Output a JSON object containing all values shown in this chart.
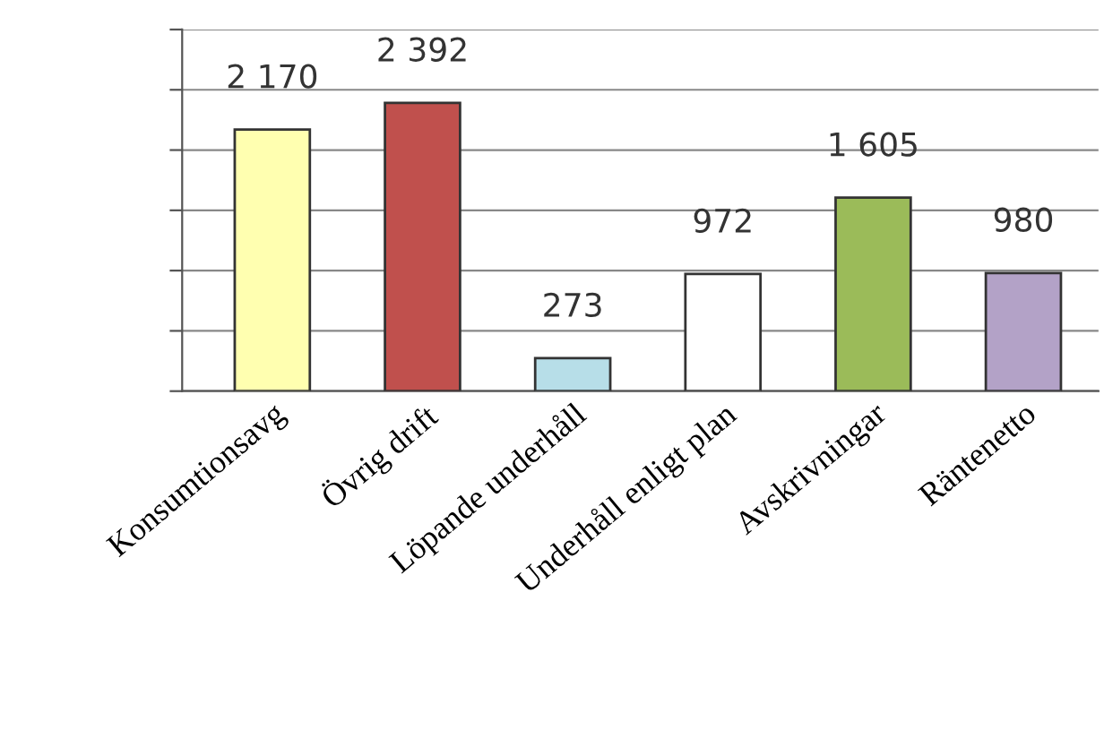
{
  "chart_data": {
    "type": "bar",
    "categories": [
      "Konsumtionsavg",
      "Övrig drift",
      "Löpande underhåll",
      "Underhåll enligt plan",
      "Avskrivningar",
      "Räntenetto"
    ],
    "values": [
      2170,
      2392,
      273,
      972,
      1605,
      980
    ],
    "colors": [
      "#ffffb0",
      "#c0504d",
      "#b7dee8",
      "#ffffff",
      "#9bbb59",
      "#b3a2c7"
    ],
    "value_labels": [
      "2 170",
      "2 392",
      "273",
      "972",
      "1 605",
      "980"
    ],
    "ylim": [
      0,
      3000
    ],
    "yticks": [
      {
        "value": 0,
        "label": null
      },
      {
        "value": 500,
        "label": null
      },
      {
        "value": 1000,
        "label": null
      },
      {
        "value": 1500,
        "label": null
      },
      {
        "value": 2000,
        "label": null
      },
      {
        "value": 2500,
        "label": null
      },
      {
        "value": 3000,
        "label": null
      }
    ],
    "grid": "y",
    "legend": false
  }
}
